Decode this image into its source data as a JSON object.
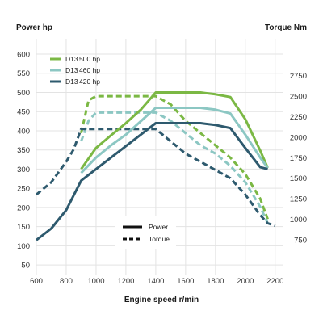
{
  "chart_data": {
    "type": "line",
    "left_axis_title": "Power hp",
    "right_axis_title": "Torque Nm",
    "xlabel": "Engine speed r/min",
    "x_ticks": [
      600,
      800,
      1000,
      1200,
      1400,
      1600,
      1800,
      2000,
      2200
    ],
    "xlim": [
      600,
      2250
    ],
    "power_ticks": [
      50,
      100,
      150,
      200,
      250,
      300,
      350,
      400,
      450,
      500,
      550,
      600
    ],
    "power_lim": [
      25,
      640
    ],
    "torque_ticks": [
      750,
      1000,
      1250,
      1500,
      1750,
      2000,
      2250,
      2500,
      2750
    ],
    "torque_lim": [
      325,
      3200
    ],
    "grid": true,
    "colors": {
      "d13_500": "#7bb844",
      "d13_460": "#8cc7c3",
      "d13_420": "#2e5a6e"
    },
    "series_legend": [
      {
        "model": "D13",
        "rating": "500 hp",
        "color": "#7bb844"
      },
      {
        "model": "D13",
        "rating": "460 hp",
        "color": "#8cc7c3"
      },
      {
        "model": "D13",
        "rating": "420 hp",
        "color": "#2e5a6e"
      }
    ],
    "style_legend": [
      {
        "label": "Power",
        "style": "solid"
      },
      {
        "label": "Torque",
        "style": "dashed"
      }
    ],
    "power_series": [
      {
        "key": "d13_500",
        "x": [
          900,
          1000,
          1100,
          1200,
          1300,
          1400,
          1500,
          1600,
          1700,
          1800,
          1900,
          2000,
          2100,
          2150
        ],
        "y": [
          300,
          355,
          388,
          420,
          455,
          500,
          500,
          500,
          500,
          495,
          488,
          430,
          348,
          303
        ]
      },
      {
        "key": "d13_460",
        "x": [
          900,
          1000,
          1100,
          1200,
          1300,
          1400,
          1500,
          1600,
          1700,
          1800,
          1900,
          2000,
          2100,
          2150
        ],
        "y": [
          290,
          330,
          362,
          390,
          425,
          460,
          460,
          460,
          460,
          455,
          445,
          390,
          330,
          303
        ]
      },
      {
        "key": "d13_420",
        "x": [
          600,
          700,
          800,
          900,
          1000,
          1100,
          1200,
          1300,
          1400,
          1500,
          1600,
          1700,
          1800,
          1900,
          2000,
          2100,
          2150
        ],
        "y": [
          115,
          145,
          193,
          270,
          300,
          330,
          360,
          390,
          420,
          420,
          420,
          420,
          415,
          407,
          355,
          305,
          300
        ]
      }
    ],
    "torque_series": [
      {
        "key": "d13_500",
        "x": [
          900,
          950,
          1000,
          1100,
          1200,
          1300,
          1400,
          1500,
          1600,
          1700,
          1800,
          1900,
          2000,
          2100,
          2150
        ],
        "y": [
          2050,
          2450,
          2500,
          2500,
          2500,
          2500,
          2500,
          2400,
          2200,
          2050,
          1900,
          1750,
          1550,
          1250,
          1000
        ]
      },
      {
        "key": "d13_460",
        "x": [
          900,
          950,
          1000,
          1100,
          1200,
          1300,
          1400,
          1500,
          1600,
          1700,
          1800,
          1900,
          2000,
          2100,
          2150
        ],
        "y": [
          1950,
          2200,
          2300,
          2300,
          2300,
          2300,
          2300,
          2200,
          2050,
          1900,
          1800,
          1650,
          1450,
          1150,
          950
        ]
      },
      {
        "key": "d13_420",
        "x": [
          600,
          700,
          800,
          850,
          900,
          1000,
          1100,
          1200,
          1300,
          1400,
          1500,
          1600,
          1700,
          1800,
          1900,
          2000,
          2100,
          2150,
          2200
        ],
        "y": [
          1300,
          1450,
          1700,
          1850,
          2100,
          2100,
          2100,
          2100,
          2100,
          2100,
          1950,
          1800,
          1700,
          1600,
          1500,
          1300,
          1050,
          950,
          920
        ]
      }
    ]
  }
}
